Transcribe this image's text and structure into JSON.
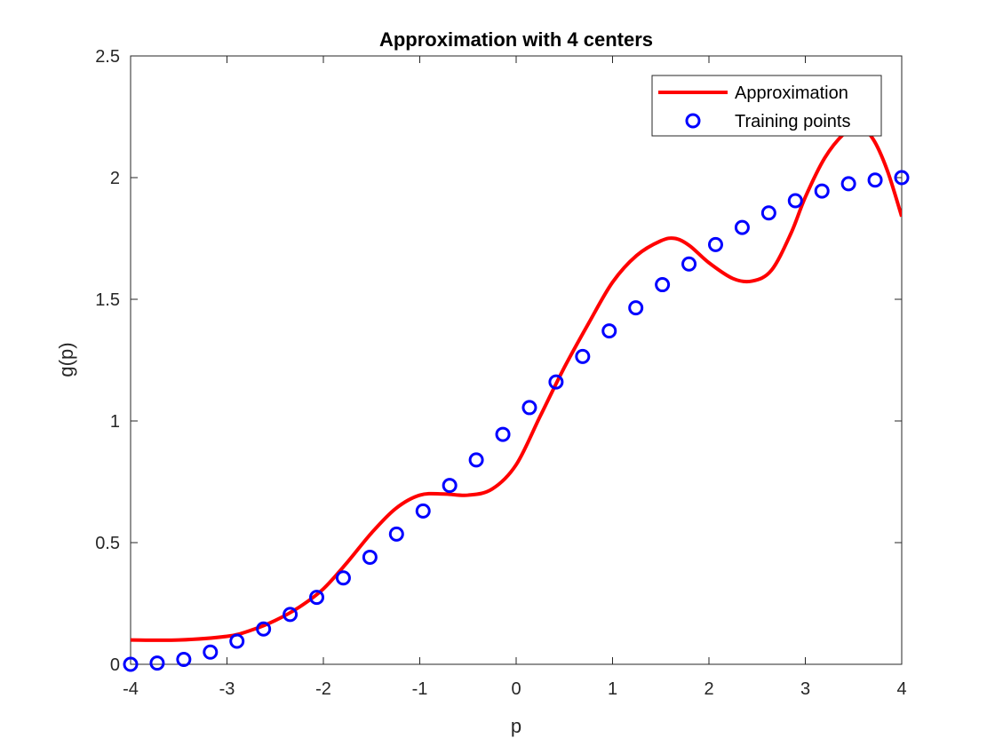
{
  "chart_data": {
    "type": "line",
    "title": "Approximation with 4 centers",
    "xlabel": "p",
    "ylabel": "g(p)",
    "xlim": [
      -4,
      4
    ],
    "ylim": [
      0,
      2.5
    ],
    "xticks": [
      -4,
      -3,
      -2,
      -1,
      0,
      1,
      2,
      3,
      4
    ],
    "yticks": [
      0,
      0.5,
      1,
      1.5,
      2,
      2.5
    ],
    "xtick_labels": [
      "-4",
      "-3",
      "-2",
      "-1",
      "0",
      "1",
      "2",
      "3",
      "4"
    ],
    "ytick_labels": [
      "0",
      "0.5",
      "1",
      "1.5",
      "2",
      "2.5"
    ],
    "grid": false,
    "legend_position": "top-right",
    "series": [
      {
        "name": "Approximation",
        "style": "line",
        "color": "#ff0000",
        "x": [
          -4.0,
          -3.5,
          -3.0,
          -2.75,
          -2.5,
          -2.25,
          -2.0,
          -1.75,
          -1.5,
          -1.25,
          -1.0,
          -0.75,
          -0.5,
          -0.25,
          0.0,
          0.25,
          0.5,
          0.75,
          1.0,
          1.25,
          1.5,
          1.65,
          1.8,
          2.0,
          2.25,
          2.45,
          2.65,
          2.85,
          3.0,
          3.2,
          3.4,
          3.55,
          3.7,
          3.85,
          4.0
        ],
        "y": [
          0.1,
          0.1,
          0.115,
          0.14,
          0.18,
          0.235,
          0.31,
          0.42,
          0.54,
          0.64,
          0.695,
          0.7,
          0.695,
          0.72,
          0.82,
          1.02,
          1.22,
          1.4,
          1.57,
          1.68,
          1.74,
          1.75,
          1.72,
          1.65,
          1.585,
          1.575,
          1.62,
          1.77,
          1.92,
          2.08,
          2.18,
          2.21,
          2.16,
          2.03,
          1.84
        ]
      },
      {
        "name": "Training points",
        "style": "markers",
        "marker": "circle",
        "color": "#0000ff",
        "x": [
          -4.0,
          -3.7241,
          -3.4483,
          -3.1724,
          -2.8966,
          -2.6207,
          -2.3448,
          -2.069,
          -1.7931,
          -1.5172,
          -1.2414,
          -0.9655,
          -0.6897,
          -0.4138,
          -0.1379,
          0.1379,
          0.4138,
          0.6897,
          0.9655,
          1.2414,
          1.5172,
          1.7931,
          2.069,
          2.3448,
          2.6207,
          2.8966,
          3.1724,
          3.4483,
          3.7241,
          4.0
        ],
        "y": [
          0.0,
          0.005,
          0.02,
          0.05,
          0.095,
          0.145,
          0.205,
          0.275,
          0.355,
          0.44,
          0.535,
          0.63,
          0.735,
          0.84,
          0.945,
          1.055,
          1.16,
          1.265,
          1.37,
          1.465,
          1.56,
          1.645,
          1.725,
          1.795,
          1.855,
          1.905,
          1.945,
          1.975,
          1.99,
          2.0
        ]
      }
    ]
  }
}
